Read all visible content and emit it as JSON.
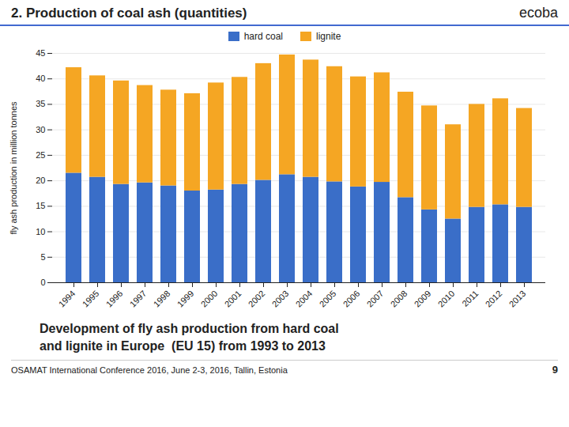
{
  "chart_data": {
    "type": "bar",
    "stacked": true,
    "title": "2. Production of coal ash (quantities)",
    "subtitle": [
      "Development of fly ash production from hard coal",
      "and lignite in Europe  (EU 15) from 1993 to 2013"
    ],
    "annotations": [
      "ecoba",
      "OSAMAT International Conference 2016, June 2-3, 2016, Tallin, Estonia",
      "9"
    ],
    "ylabel": "fly ash production in million tonnes",
    "categories": [
      "1994",
      "1995",
      "1996",
      "1997",
      "1998",
      "1999",
      "2000",
      "2001",
      "2002",
      "2003",
      "2004",
      "2005",
      "2006",
      "2007",
      "2008",
      "2009",
      "2010",
      "2011",
      "2012",
      "2013"
    ],
    "series": [
      {
        "name": "hard coal",
        "color": "#3A6EC8",
        "values": [
          21.5,
          20.7,
          19.3,
          19.6,
          19.0,
          18.0,
          18.2,
          19.3,
          20.1,
          21.2,
          20.7,
          19.8,
          18.8,
          19.7,
          16.7,
          14.3,
          12.5,
          14.8,
          15.3,
          14.8
        ]
      },
      {
        "name": "lignite",
        "color": "#F5A623",
        "values": [
          20.7,
          19.9,
          20.3,
          19.1,
          18.8,
          19.1,
          21.0,
          21.0,
          22.9,
          23.5,
          23.0,
          22.6,
          21.6,
          21.5,
          20.7,
          20.4,
          18.5,
          20.2,
          20.8,
          19.4
        ]
      }
    ],
    "ylim": [
      0,
      45
    ],
    "yticks": [
      0,
      5,
      10,
      15,
      20,
      25,
      30,
      35,
      40,
      45
    ],
    "grid": true,
    "legend": "top"
  }
}
